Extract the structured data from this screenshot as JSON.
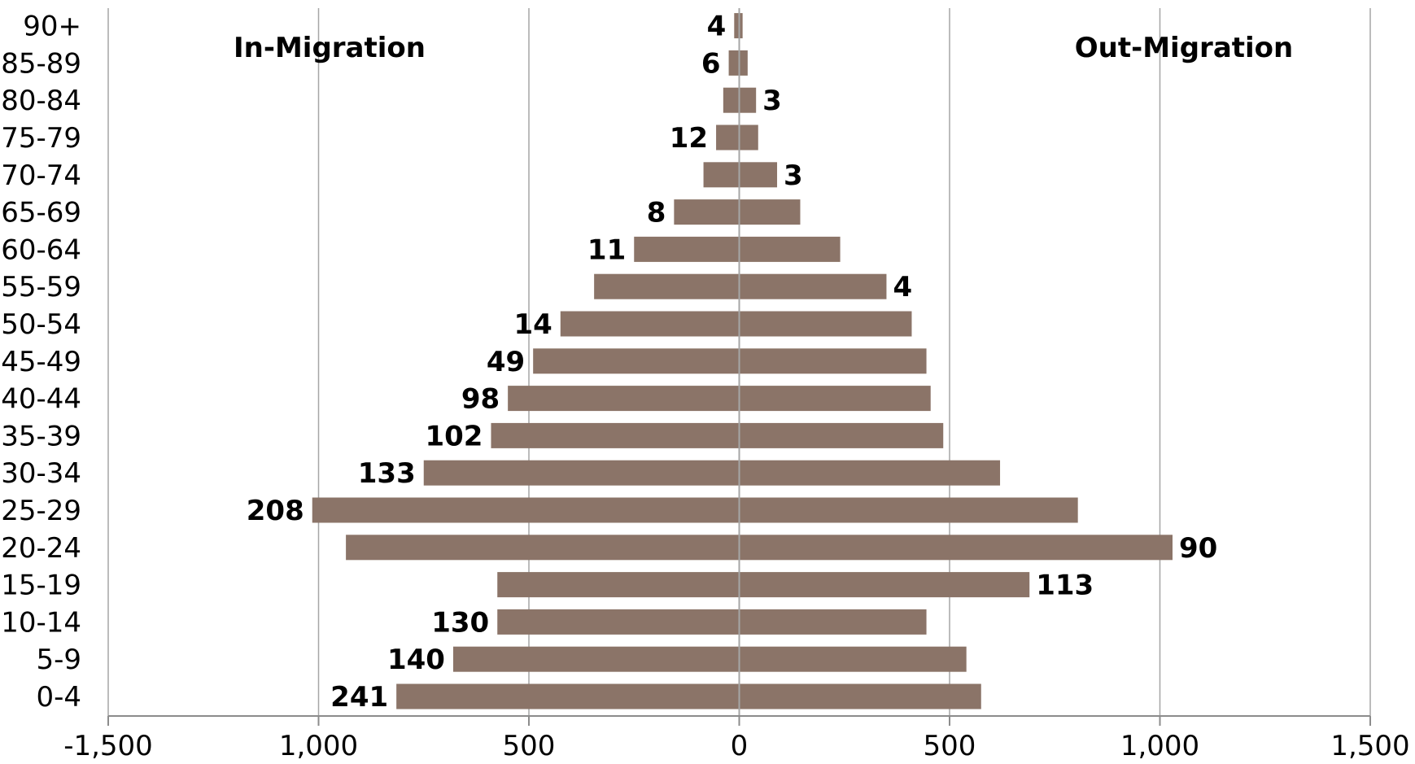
{
  "chart_data": {
    "type": "bar",
    "orientation": "horizontal",
    "categories": [
      "0-4",
      "5-9",
      "10-14",
      "15-19",
      "20-24",
      "25-29",
      "30-34",
      "35-39",
      "40-44",
      "45-49",
      "50-54",
      "55-59",
      "60-64",
      "65-69",
      "70-74",
      "75-79",
      "80-84",
      "85-89",
      "90+"
    ],
    "series": [
      {
        "name": "In-Migration",
        "values": [
          -815,
          -680,
          -575,
          -575,
          -935,
          -1015,
          -750,
          -590,
          -550,
          -490,
          -425,
          -345,
          -250,
          -155,
          -85,
          -55,
          -38,
          -25,
          -12
        ]
      },
      {
        "name": "Out-Migration",
        "values": [
          575,
          540,
          445,
          690,
          1030,
          805,
          620,
          485,
          455,
          445,
          410,
          350,
          240,
          145,
          90,
          45,
          40,
          20,
          8
        ]
      }
    ],
    "data_labels": [
      {
        "category": "0-4",
        "text": "241",
        "side": "left"
      },
      {
        "category": "5-9",
        "text": "140",
        "side": "left"
      },
      {
        "category": "10-14",
        "text": "130",
        "side": "left"
      },
      {
        "category": "15-19",
        "text": "113",
        "side": "right"
      },
      {
        "category": "20-24",
        "text": "90",
        "side": "right"
      },
      {
        "category": "25-29",
        "text": "208",
        "side": "left"
      },
      {
        "category": "30-34",
        "text": "133",
        "side": "left"
      },
      {
        "category": "35-39",
        "text": "102",
        "side": "left"
      },
      {
        "category": "40-44",
        "text": "98",
        "side": "left"
      },
      {
        "category": "45-49",
        "text": "49",
        "side": "left"
      },
      {
        "category": "50-54",
        "text": "14",
        "side": "left"
      },
      {
        "category": "55-59",
        "text": "4",
        "side": "right"
      },
      {
        "category": "60-64",
        "text": "11",
        "side": "left"
      },
      {
        "category": "65-69",
        "text": "8",
        "side": "left"
      },
      {
        "category": "70-74",
        "text": "3",
        "side": "right"
      },
      {
        "category": "75-79",
        "text": "12",
        "side": "left"
      },
      {
        "category": "80-84",
        "text": "3",
        "side": "right"
      },
      {
        "category": "85-89",
        "text": "6",
        "side": "left"
      },
      {
        "category": "90+",
        "text": "4",
        "side": "left"
      }
    ],
    "xlim": [
      -1500,
      1500
    ],
    "xticks": [
      -1500,
      -1000,
      -500,
      0,
      500,
      1000,
      1500
    ],
    "xtick_labels": [
      "-1,500",
      "1,000",
      "500",
      "0",
      "500",
      "1,000",
      "1,500"
    ],
    "side_titles": {
      "left": "In-Migration",
      "right": "Out-Migration"
    },
    "bar_color": "#8b7468",
    "gridlines": "vertical",
    "legend": "none"
  }
}
